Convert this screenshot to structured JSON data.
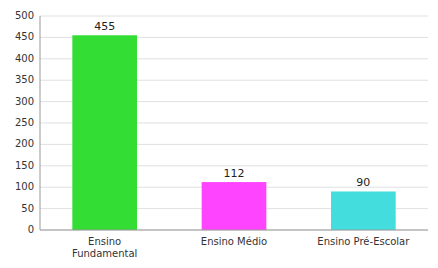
{
  "chart_data": {
    "type": "bar",
    "categories": [
      "Ensino\nFundamental",
      "Ensino Médio",
      "Ensino Pré-Escolar"
    ],
    "values": [
      455,
      112,
      90
    ],
    "colors": [
      "#33dd33",
      "#ff44ff",
      "#44dddd"
    ],
    "ylim": [
      0,
      500
    ],
    "yticks": [
      0,
      50,
      100,
      150,
      200,
      250,
      300,
      350,
      400,
      450,
      500
    ],
    "grid": true,
    "data_labels": true
  }
}
